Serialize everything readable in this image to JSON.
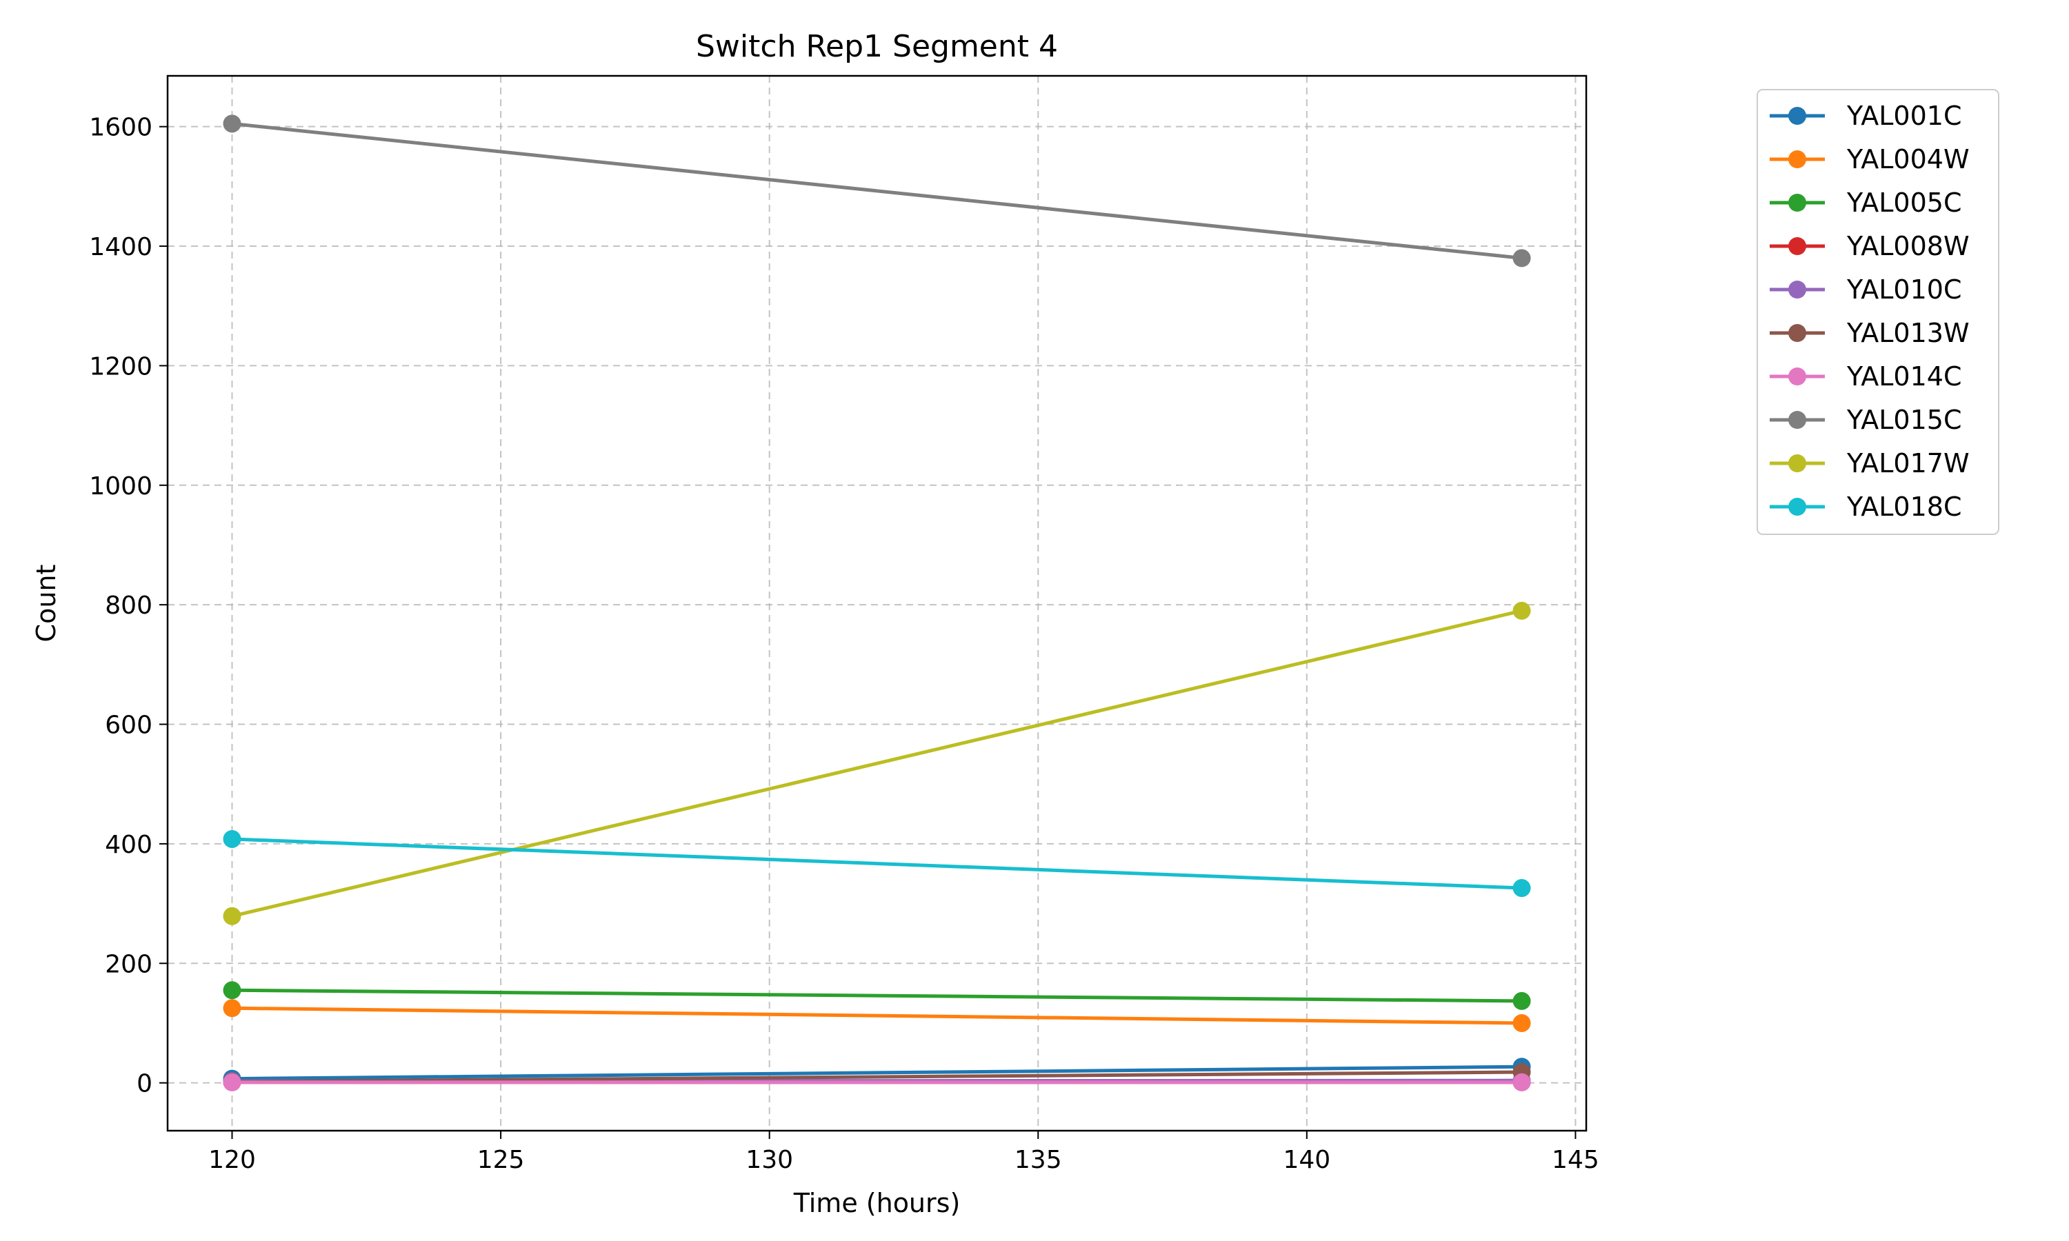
{
  "chart_data": {
    "type": "line",
    "title": "Switch Rep1 Segment 4",
    "xlabel": "Time (hours)",
    "ylabel": "Count",
    "xlim": [
      118.8,
      145.2
    ],
    "ylim": [
      -80,
      1685
    ],
    "xticks": [
      120,
      125,
      130,
      135,
      140,
      145
    ],
    "yticks": [
      0,
      200,
      400,
      600,
      800,
      1000,
      1200,
      1400,
      1600
    ],
    "grid": true,
    "legend": "outside-top-right",
    "x": [
      120,
      144
    ],
    "series": [
      {
        "name": "YAL001C",
        "color": "#1f77b4",
        "values": [
          7,
          27
        ]
      },
      {
        "name": "YAL004W",
        "color": "#ff7f0e",
        "values": [
          125,
          100
        ]
      },
      {
        "name": "YAL005C",
        "color": "#2ca02c",
        "values": [
          155,
          137
        ]
      },
      {
        "name": "YAL008W",
        "color": "#d62728",
        "values": [
          1,
          1
        ]
      },
      {
        "name": "YAL010C",
        "color": "#9467bd",
        "values": [
          3,
          4
        ]
      },
      {
        "name": "YAL013W",
        "color": "#8c564b",
        "values": [
          2,
          18
        ]
      },
      {
        "name": "YAL014C",
        "color": "#e377c2",
        "values": [
          1,
          1
        ]
      },
      {
        "name": "YAL015C",
        "color": "#7f7f7f",
        "values": [
          1605,
          1380
        ]
      },
      {
        "name": "YAL017W",
        "color": "#bcbd22",
        "values": [
          279,
          790
        ]
      },
      {
        "name": "YAL018C",
        "color": "#17becf",
        "values": [
          408,
          326
        ]
      }
    ]
  }
}
